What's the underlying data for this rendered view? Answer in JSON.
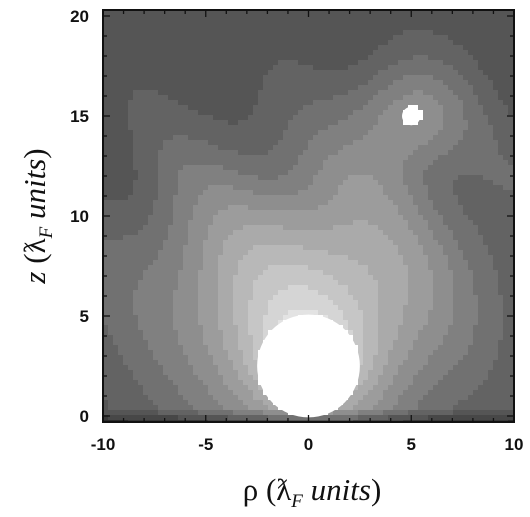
{
  "chart_data": {
    "type": "heatmap",
    "title": "",
    "xlabel": {
      "symbol": "ρ",
      "open": " (",
      "lambda": "ƛ",
      "sub": "F",
      "units": " units",
      "close": ")"
    },
    "ylabel": {
      "symbol": "z",
      "open": " (",
      "lambda": "ƛ",
      "sub": "F",
      "units": " units",
      "close": ")"
    },
    "xlim": [
      -10,
      10
    ],
    "ylim": [
      -0.3,
      20.3
    ],
    "x_ticks": [
      "-10",
      "-5",
      "0",
      "5",
      "10"
    ],
    "y_ticks": [
      "0",
      "5",
      "10",
      "15",
      "20"
    ],
    "colormap": "grayscale (dark = low, white = high)",
    "features": [
      {
        "label": "main bright lobe",
        "x": 0,
        "y": 2.5,
        "value": "max"
      },
      {
        "label": "secondary bright spot",
        "x": 5,
        "y": 15,
        "value": "high"
      }
    ],
    "grid": false,
    "legend": "none"
  }
}
